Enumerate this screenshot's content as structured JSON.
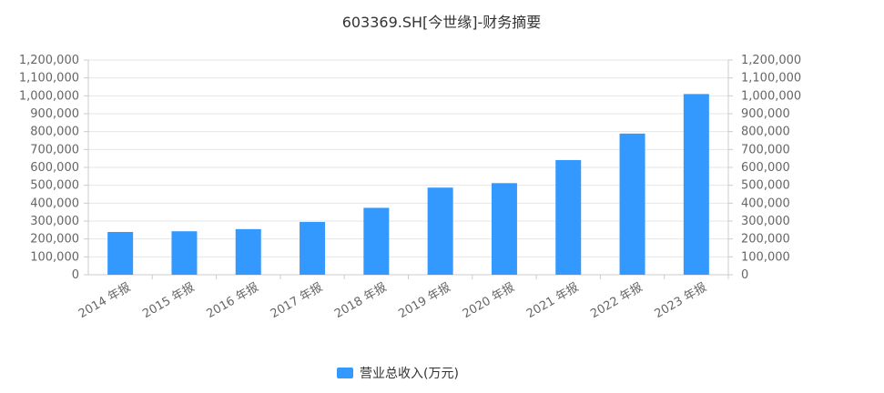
{
  "chart_data": {
    "type": "bar",
    "title": "603369.SH[今世缘]-财务摘要",
    "categories": [
      "2014 年报",
      "2015 年报",
      "2016 年报",
      "2017 年报",
      "2018 年报",
      "2019 年报",
      "2020 年报",
      "2021 年报",
      "2022 年报",
      "2023 年报"
    ],
    "series": [
      {
        "name": "营业总收入(万元)",
        "color": "#3399ff",
        "values": [
          239000,
          243000,
          255000,
          295000,
          374000,
          487000,
          512000,
          641000,
          789000,
          1010000
        ]
      }
    ],
    "ylim": [
      0,
      1200000
    ],
    "yticks": [
      0,
      100000,
      200000,
      300000,
      400000,
      500000,
      600000,
      700000,
      800000,
      900000,
      1000000,
      1100000,
      1200000
    ],
    "ytick_labels": [
      "0",
      "100,000",
      "200,000",
      "300,000",
      "400,000",
      "500,000",
      "600,000",
      "700,000",
      "800,000",
      "900,000",
      "1,000,000",
      "1,100,000",
      "1,200,000"
    ],
    "secondary_axis": true,
    "grid": true,
    "legend_position": "bottom"
  }
}
